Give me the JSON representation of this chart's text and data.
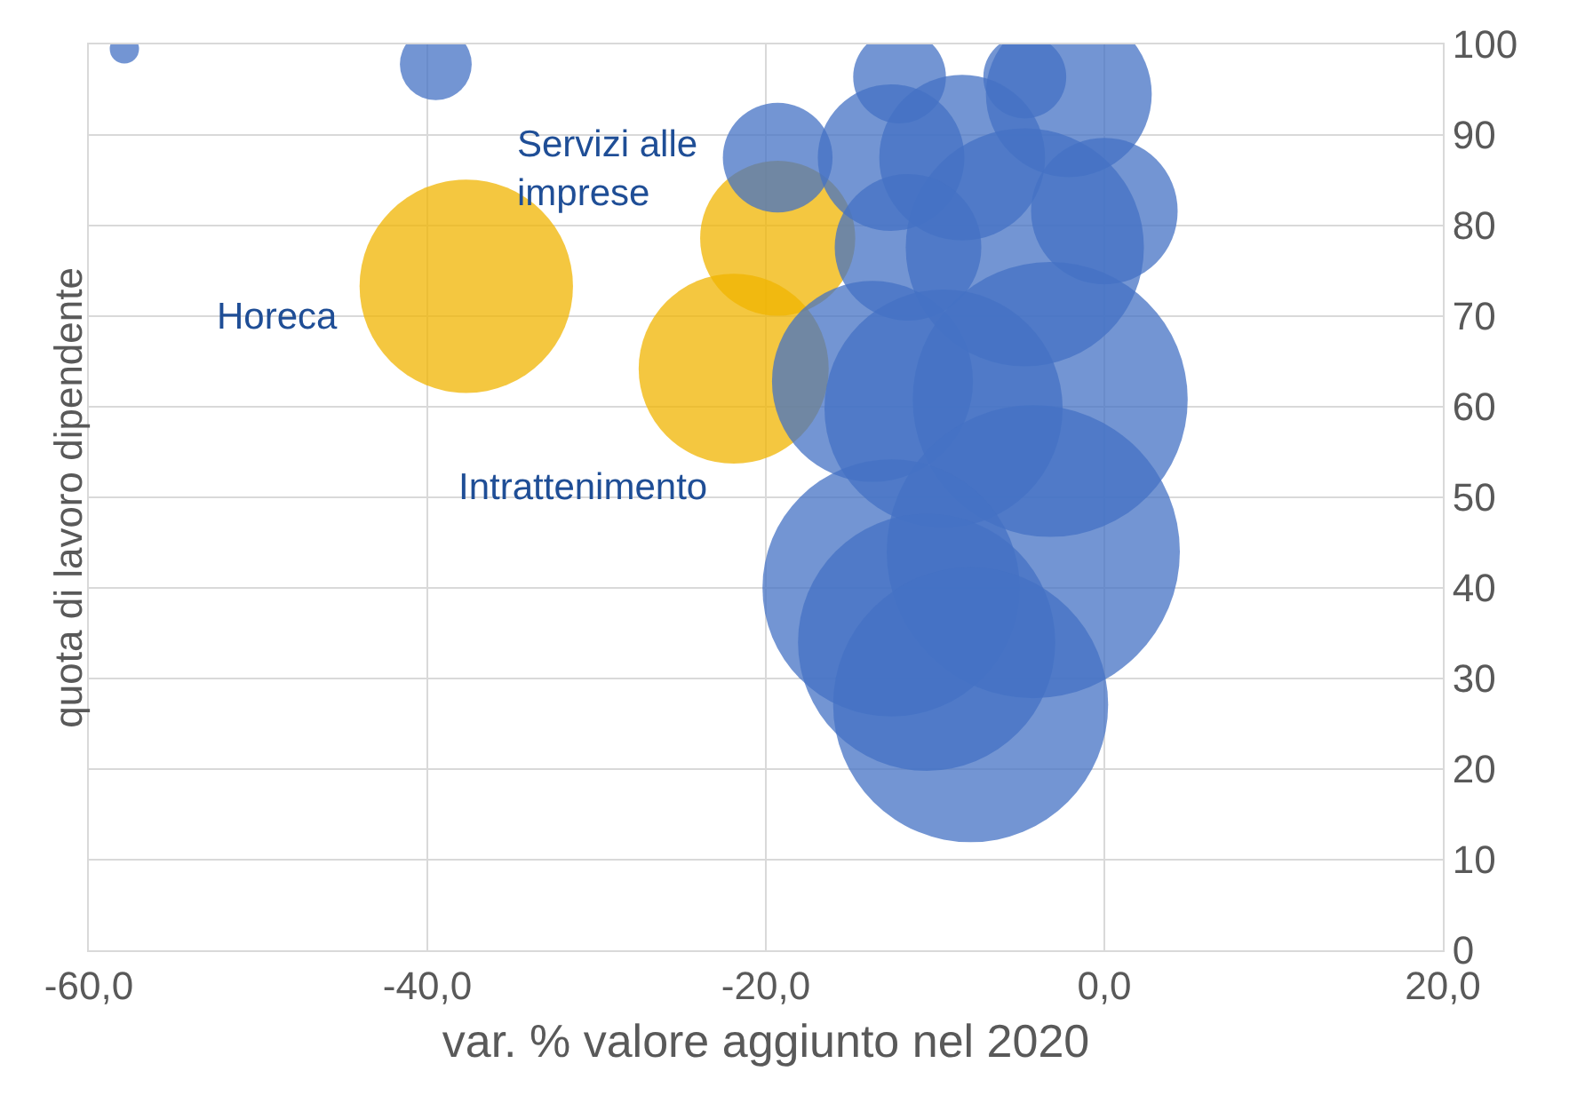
{
  "chart_data": {
    "type": "bubble",
    "xlabel": "var. % valore aggiunto nel 2020",
    "ylabel": "quota di lavoro dipendente",
    "x": [
      -57.9,
      -39.5,
      -37.7,
      -19.3,
      -21.9,
      -19.3,
      -12.1,
      -4.7,
      -2.1,
      -8.4,
      -12.6,
      0.0,
      -4.7,
      -11.6,
      -3.2,
      -13.7,
      -9.5,
      -4.2,
      -12.6,
      -10.5,
      -7.9
    ],
    "values": [
      99.5,
      97.8,
      73.3,
      78.6,
      64.2,
      87.5,
      96.4,
      96.4,
      94.5,
      87.5,
      87.5,
      81.6,
      77.6,
      77.6,
      60.8,
      62.8,
      59.8,
      44.0,
      40.0,
      34.0,
      27.1
    ],
    "sizes": [
      0.01,
      0.06,
      0.53,
      0.28,
      0.42,
      0.14,
      0.1,
      0.08,
      0.32,
      0.32,
      0.25,
      0.25,
      0.66,
      0.25,
      0.88,
      0.47,
      0.66,
      1.0,
      0.77,
      0.77,
      0.88
    ],
    "colors": [
      "#4472c4",
      "#4472c4",
      "#f0b400",
      "#f0b400",
      "#f0b400",
      "#4472c4",
      "#4472c4",
      "#4472c4",
      "#4472c4",
      "#4472c4",
      "#4472c4",
      "#4472c4",
      "#4472c4",
      "#4472c4",
      "#4472c4",
      "#4472c4",
      "#4472c4",
      "#4472c4",
      "#4472c4",
      "#4472c4",
      "#4472c4"
    ],
    "annotations": [
      "Horeca",
      "Servizi alle imprese",
      "Intrattenimento"
    ],
    "xlim": [
      -60,
      20
    ],
    "ylim": [
      0,
      100
    ],
    "xticks": [
      {
        "value": -60,
        "label": "-60,0"
      },
      {
        "value": -40,
        "label": "-40,0"
      },
      {
        "value": -20,
        "label": "-20,0"
      },
      {
        "value": 0,
        "label": "0,0"
      },
      {
        "value": 20,
        "label": "20,0"
      }
    ],
    "yticks": [
      0,
      10,
      20,
      30,
      40,
      50,
      60,
      70,
      80,
      90,
      100
    ],
    "grid": true
  }
}
